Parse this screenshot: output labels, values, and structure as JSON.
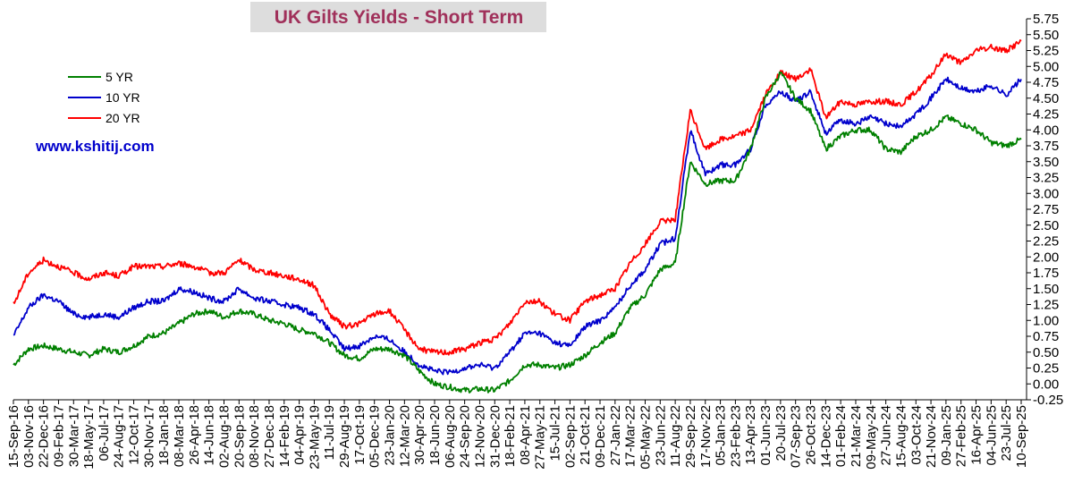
{
  "chart_data": {
    "type": "line",
    "title": "UK Gilts Yields - Short Term",
    "watermark": "www.kshitij.com",
    "ylim": [
      -0.25,
      5.75
    ],
    "y_ticks": [
      "5.75",
      "5.50",
      "5.25",
      "5.00",
      "4.75",
      "4.50",
      "4.25",
      "4.00",
      "3.75",
      "3.50",
      "3.25",
      "3.00",
      "2.75",
      "2.50",
      "2.25",
      "2.00",
      "1.75",
      "1.50",
      "1.25",
      "1.00",
      "0.75",
      "0.50",
      "0.25",
      "0.00",
      "-0.25"
    ],
    "x_tick_labels": [
      "15-Sep-16",
      "03-Nov-16",
      "22-Dec-16",
      "09-Feb-17",
      "30-Mar-17",
      "18-May-17",
      "06-Jul-17",
      "24-Aug-17",
      "12-Oct-17",
      "30-Nov-17",
      "18-Jan-18",
      "08-Mar-18",
      "26-Apr-18",
      "14-Jun-18",
      "02-Aug-18",
      "20-Sep-18",
      "08-Nov-18",
      "27-Dec-18",
      "14-Feb-19",
      "04-Apr-19",
      "23-May-19",
      "11-Jul-19",
      "29-Aug-19",
      "17-Oct-19",
      "05-Dec-19",
      "23-Jan-20",
      "12-Mar-20",
      "30-Apr-20",
      "18-Jun-20",
      "06-Aug-20",
      "24-Sep-20",
      "12-Nov-20",
      "31-Dec-20",
      "18-Feb-21",
      "08-Apr-21",
      "27-May-21",
      "15-Jul-21",
      "02-Sep-21",
      "21-Oct-21",
      "09-Dec-21",
      "27-Jan-22",
      "17-Mar-22",
      "05-May-22",
      "23-Jun-22",
      "11-Aug-22",
      "29-Sep-22",
      "17-Nov-22",
      "05-Jan-23",
      "23-Feb-23",
      "13-Apr-23",
      "01-Jun-23",
      "20-Jul-23",
      "07-Sep-23",
      "26-Oct-23",
      "14-Dec-23",
      "01-Feb-24",
      "21-Mar-24",
      "09-May-24",
      "27-Jun-24",
      "15-Aug-24",
      "03-Oct-24",
      "21-Nov-24",
      "09-Jan-25",
      "27-Feb-25",
      "16-Apr-25",
      "04-Jun-25",
      "23-Jul-25",
      "10-Sep-25"
    ],
    "series": [
      {
        "name": "5 YR",
        "color": "#008000",
        "values": [
          0.3,
          0.55,
          0.6,
          0.55,
          0.5,
          0.45,
          0.55,
          0.5,
          0.6,
          0.75,
          0.8,
          0.95,
          1.1,
          1.15,
          1.05,
          1.15,
          1.1,
          1.0,
          0.95,
          0.85,
          0.8,
          0.65,
          0.45,
          0.4,
          0.55,
          0.55,
          0.45,
          0.2,
          0.0,
          -0.05,
          -0.1,
          -0.08,
          -0.1,
          0.05,
          0.3,
          0.3,
          0.25,
          0.3,
          0.45,
          0.65,
          0.8,
          1.2,
          1.4,
          1.8,
          1.9,
          3.5,
          3.15,
          3.2,
          3.2,
          3.7,
          4.5,
          4.9,
          4.5,
          4.3,
          3.7,
          3.9,
          4.0,
          4.0,
          3.7,
          3.65,
          3.9,
          4.0,
          4.2,
          4.1,
          4.0,
          3.8,
          3.75,
          3.85
        ]
      },
      {
        "name": "10 YR",
        "color": "#0000cc",
        "values": [
          0.75,
          1.2,
          1.4,
          1.3,
          1.1,
          1.05,
          1.1,
          1.05,
          1.2,
          1.3,
          1.3,
          1.5,
          1.45,
          1.35,
          1.3,
          1.5,
          1.35,
          1.3,
          1.25,
          1.2,
          1.1,
          0.85,
          0.55,
          0.6,
          0.75,
          0.7,
          0.5,
          0.3,
          0.2,
          0.18,
          0.25,
          0.3,
          0.25,
          0.5,
          0.8,
          0.8,
          0.65,
          0.6,
          0.9,
          1.0,
          1.2,
          1.55,
          1.8,
          2.2,
          2.3,
          4.0,
          3.3,
          3.45,
          3.45,
          3.7,
          4.4,
          4.6,
          4.45,
          4.6,
          3.95,
          4.15,
          4.1,
          4.2,
          4.1,
          4.05,
          4.25,
          4.5,
          4.8,
          4.65,
          4.6,
          4.7,
          4.55,
          4.8
        ]
      },
      {
        "name": "20 YR",
        "color": "#ff0000",
        "values": [
          1.25,
          1.75,
          1.95,
          1.85,
          1.75,
          1.65,
          1.75,
          1.7,
          1.85,
          1.85,
          1.85,
          1.9,
          1.85,
          1.75,
          1.75,
          1.95,
          1.8,
          1.75,
          1.7,
          1.65,
          1.55,
          1.1,
          0.9,
          0.95,
          1.1,
          1.15,
          0.85,
          0.55,
          0.5,
          0.5,
          0.55,
          0.65,
          0.7,
          0.95,
          1.3,
          1.3,
          1.1,
          1.0,
          1.3,
          1.4,
          1.5,
          1.9,
          2.2,
          2.55,
          2.6,
          4.3,
          3.7,
          3.85,
          3.9,
          4.0,
          4.55,
          4.9,
          4.8,
          4.95,
          4.2,
          4.45,
          4.4,
          4.45,
          4.45,
          4.4,
          4.6,
          4.85,
          5.2,
          5.05,
          5.25,
          5.3,
          5.25,
          5.4
        ]
      }
    ],
    "legend_placement": "top-left",
    "grid": false
  }
}
